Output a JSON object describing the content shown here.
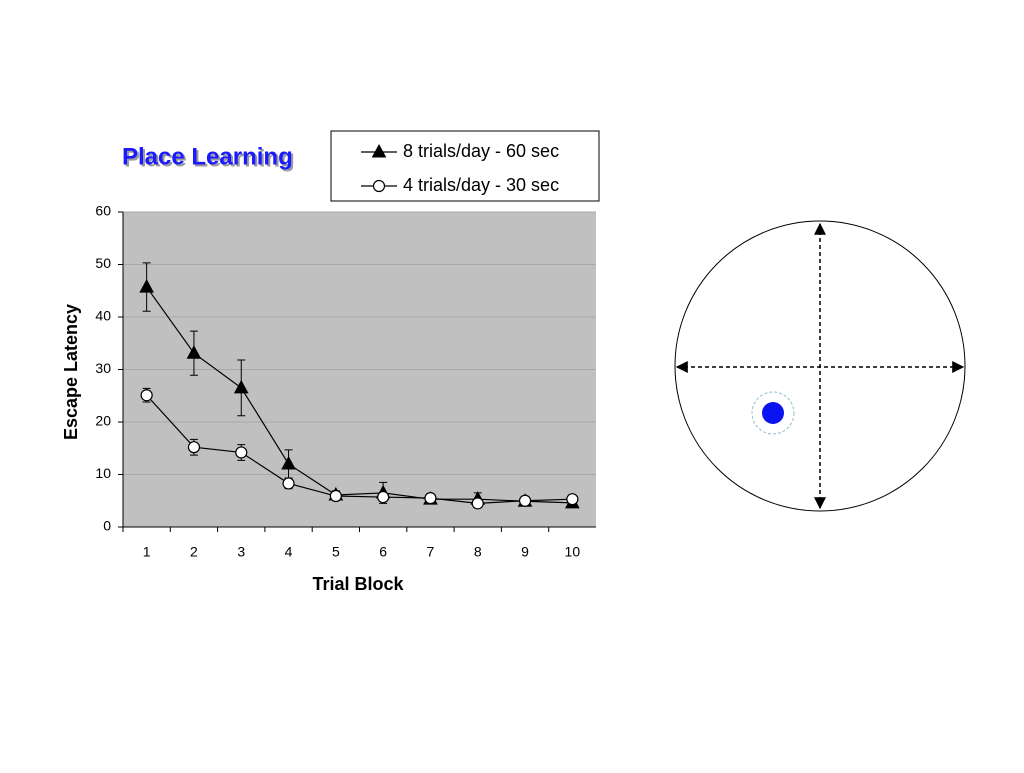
{
  "chart_data": {
    "type": "line",
    "title": "Place Learning",
    "xlabel": "Trial Block",
    "ylabel": "Escape Latency",
    "categories": [
      "1",
      "2",
      "3",
      "4",
      "5",
      "6",
      "7",
      "8",
      "9",
      "10"
    ],
    "series": [
      {
        "name": "8 trials/day - 60 sec",
        "color": "#000000",
        "marker": "triangle",
        "marker_fill": "#000000",
        "values": [
          45.7,
          33.1,
          26.5,
          12.0,
          6.1,
          6.5,
          5.3,
          5.3,
          4.9,
          4.6
        ],
        "errors": [
          4.6,
          4.2,
          5.3,
          2.7,
          0.8,
          2.0,
          0.5,
          1.2,
          0.5,
          0.5
        ]
      },
      {
        "name": "4 trials/day - 30 sec",
        "color": "#000000",
        "marker": "circle",
        "marker_fill": "#ffffff",
        "values": [
          25.1,
          15.2,
          14.2,
          8.3,
          5.9,
          5.7,
          5.5,
          4.5,
          5.0,
          5.3
        ],
        "errors": [
          1.3,
          1.5,
          1.5,
          1.0,
          0.5,
          0.5,
          0.5,
          0.5,
          0.5,
          0.5
        ]
      }
    ],
    "ylim": [
      0,
      60
    ],
    "yticks": [
      0,
      10,
      20,
      30,
      40,
      50,
      60
    ],
    "grid": true,
    "plot_background": "#c0c0c0"
  }
}
